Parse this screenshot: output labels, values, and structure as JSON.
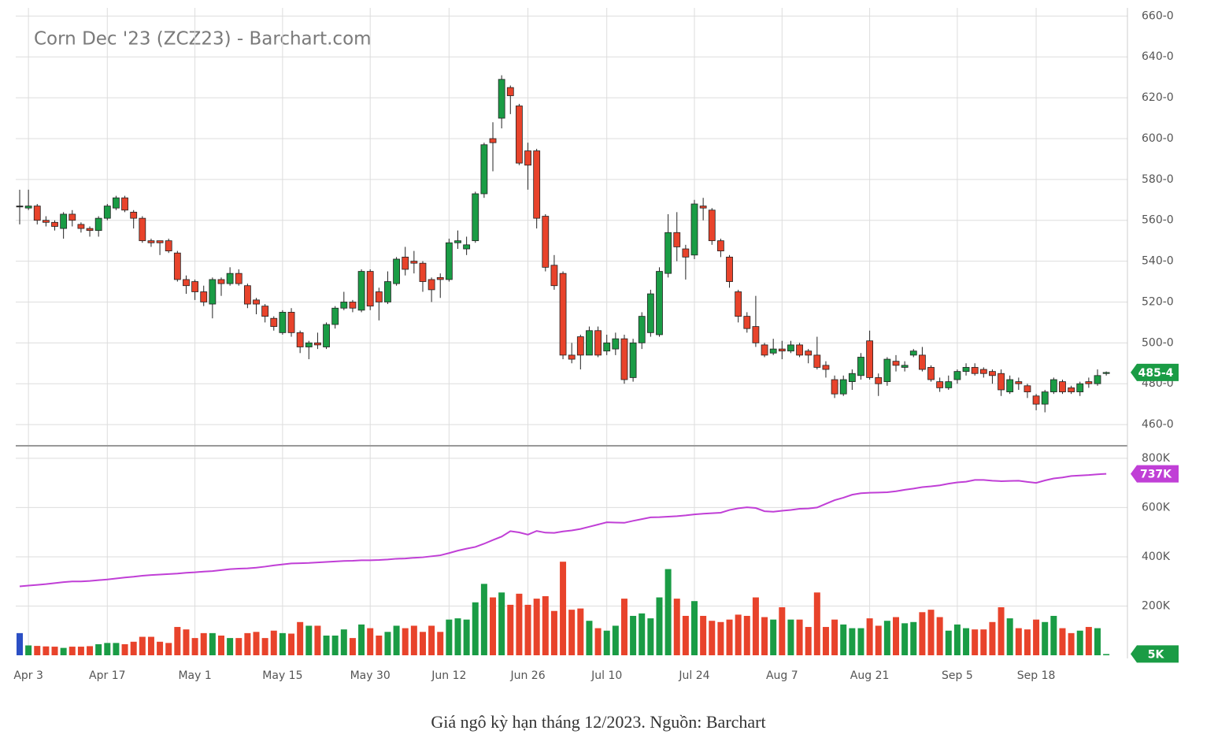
{
  "caption": "Giá ngô kỳ hạn tháng 12/2023. Nguồn: Barchart",
  "chart_data": [
    {
      "type": "candlestick",
      "title": "Corn Dec '23 (ZCZ23) - Barchart.com",
      "categories": [
        null,
        "Apr 3",
        null,
        null,
        null,
        null,
        null,
        null,
        null,
        null,
        "Apr 17",
        null,
        null,
        null,
        null,
        null,
        null,
        null,
        null,
        null,
        "May 1",
        null,
        null,
        null,
        null,
        null,
        null,
        null,
        null,
        null,
        "May 15",
        null,
        null,
        null,
        null,
        null,
        null,
        null,
        null,
        null,
        "May 30",
        null,
        null,
        null,
        null,
        null,
        null,
        null,
        null,
        "Jun 12",
        null,
        null,
        null,
        null,
        null,
        null,
        null,
        null,
        "Jun 26",
        null,
        null,
        null,
        null,
        null,
        null,
        null,
        null,
        "Jul 10",
        null,
        null,
        null,
        null,
        null,
        null,
        null,
        null,
        null,
        "Jul 24",
        null,
        null,
        null,
        null,
        null,
        null,
        null,
        null,
        null,
        "Aug 7",
        null,
        null,
        null,
        null,
        null,
        null,
        null,
        null,
        null,
        "Aug 21",
        null,
        null,
        null,
        null,
        null,
        null,
        null,
        null,
        null,
        "Sep 5",
        null,
        null,
        null,
        null,
        null,
        null,
        null,
        null,
        "Sep 18",
        null,
        null,
        null,
        null,
        null,
        null,
        null,
        null
      ],
      "open": [
        567,
        566,
        567,
        560,
        559,
        556,
        563,
        558,
        556,
        555,
        561,
        566,
        571,
        564,
        561,
        550,
        550,
        550,
        544,
        531,
        530,
        525,
        519,
        531,
        529,
        534,
        528,
        521,
        518,
        512,
        505,
        515,
        505,
        498,
        500,
        498,
        509,
        517,
        520,
        516,
        535,
        525,
        520,
        529,
        542,
        540,
        539,
        531,
        532,
        531,
        549,
        546,
        550,
        573,
        600,
        610,
        625,
        616,
        594,
        594,
        562,
        538,
        534,
        494,
        503,
        494,
        506,
        496,
        497,
        502,
        483,
        500,
        505,
        504,
        534,
        554,
        546,
        543,
        567,
        565,
        550,
        542,
        525,
        513,
        508,
        499,
        495,
        497,
        496,
        499,
        496,
        494,
        489,
        482,
        475,
        481,
        484,
        501,
        483,
        481,
        491,
        488,
        494,
        494,
        488,
        481,
        478,
        482,
        486,
        488,
        487,
        486,
        485,
        476,
        481,
        479,
        474,
        470,
        476,
        481,
        478,
        476,
        481,
        480,
        485
      ],
      "high": [
        575,
        575,
        568,
        562,
        560,
        564,
        565,
        559,
        557,
        562,
        568,
        572,
        572,
        565,
        562,
        551,
        550,
        551,
        545,
        533,
        531,
        528,
        532,
        532,
        537,
        536,
        529,
        522,
        519,
        513,
        516,
        517,
        506,
        501,
        505,
        510,
        518,
        525,
        521,
        536,
        536,
        527,
        535,
        542,
        547,
        545,
        540,
        532,
        534,
        551,
        555,
        552,
        574,
        598,
        608,
        631,
        626,
        617,
        598,
        595,
        563,
        543,
        535,
        500,
        504,
        508,
        508,
        504,
        505,
        504,
        502,
        515,
        526,
        537,
        563,
        564,
        548,
        570,
        571,
        566,
        551,
        543,
        526,
        515,
        523,
        500,
        502,
        501,
        501,
        500,
        497,
        503,
        491,
        484,
        484,
        487,
        495,
        506,
        485,
        493,
        494,
        491,
        497,
        498,
        489,
        483,
        484,
        487,
        490,
        490,
        488,
        487,
        487,
        484,
        483,
        480,
        475,
        477,
        483,
        482,
        479,
        481,
        483,
        487,
        486
      ],
      "low": [
        558,
        565,
        558,
        557,
        555,
        551,
        557,
        554,
        552,
        552,
        560,
        565,
        564,
        556,
        549,
        547,
        543,
        544,
        530,
        524,
        521,
        518,
        512,
        523,
        528,
        528,
        517,
        514,
        510,
        506,
        504,
        503,
        495,
        492,
        497,
        497,
        507,
        516,
        515,
        515,
        516,
        511,
        519,
        528,
        533,
        534,
        525,
        520,
        522,
        530,
        546,
        543,
        549,
        571,
        584,
        605,
        612,
        587,
        575,
        556,
        535,
        526,
        492,
        490,
        487,
        494,
        493,
        494,
        494,
        480,
        481,
        497,
        503,
        503,
        532,
        540,
        531,
        541,
        560,
        548,
        542,
        527,
        510,
        505,
        498,
        493,
        494,
        492,
        495,
        493,
        490,
        487,
        483,
        473,
        474,
        477,
        482,
        482,
        474,
        479,
        486,
        486,
        493,
        486,
        481,
        476,
        477,
        480,
        484,
        484,
        483,
        480,
        474,
        475,
        477,
        473,
        467,
        466,
        475,
        475,
        475,
        474,
        478,
        479,
        484
      ],
      "close": [
        567,
        567,
        560,
        559,
        557,
        563,
        560,
        556,
        555,
        561,
        567,
        571,
        565,
        561,
        550,
        549,
        549,
        545,
        531,
        528,
        525,
        520,
        531,
        529,
        534,
        529,
        519,
        519,
        513,
        508,
        515,
        505,
        498,
        500,
        499,
        509,
        517,
        520,
        517,
        535,
        518,
        520,
        530,
        541,
        536,
        539,
        530,
        526,
        531,
        549,
        550,
        548,
        573,
        597,
        598,
        629,
        621,
        588,
        587,
        561,
        537,
        528,
        494,
        492,
        494,
        506,
        494,
        500,
        502,
        482,
        500,
        513,
        524,
        535,
        554,
        547,
        542,
        568,
        566,
        550,
        545,
        530,
        513,
        507,
        500,
        494,
        497,
        496,
        499,
        494,
        494,
        488,
        487,
        475,
        482,
        485,
        493,
        483,
        480,
        492,
        489,
        489,
        496,
        487,
        482,
        478,
        481,
        486,
        488,
        485,
        485,
        484,
        477,
        482,
        480,
        476,
        470,
        476,
        482,
        476,
        476,
        480,
        480,
        484,
        485.5
      ],
      "colors": {
        "up": "#1a9c45",
        "down": "#e8432b",
        "neutral": "#2b4fc4"
      },
      "ylim": [
        450,
        664
      ],
      "yticks": [
        {
          "value": 460,
          "label": "460-0"
        },
        {
          "value": 480,
          "label": "480-0"
        },
        {
          "value": 500,
          "label": "500-0"
        },
        {
          "value": 520,
          "label": "520-0"
        },
        {
          "value": 540,
          "label": "540-0"
        },
        {
          "value": 560,
          "label": "560-0"
        },
        {
          "value": 580,
          "label": "580-0"
        },
        {
          "value": 600,
          "label": "600-0"
        },
        {
          "value": 620,
          "label": "620-0"
        },
        {
          "value": 640,
          "label": "640-0"
        },
        {
          "value": 660,
          "label": "660-0"
        }
      ],
      "last_price": {
        "value": 485.5,
        "label": "485-4"
      },
      "grid": true
    },
    {
      "type": "volume",
      "values": [
        90,
        40,
        38,
        36,
        35,
        30,
        35,
        35,
        37,
        45,
        50,
        50,
        45,
        55,
        75,
        75,
        55,
        50,
        115,
        105,
        70,
        90,
        90,
        80,
        70,
        70,
        90,
        95,
        70,
        100,
        90,
        88,
        135,
        120,
        120,
        80,
        80,
        105,
        70,
        125,
        110,
        80,
        95,
        120,
        110,
        120,
        95,
        120,
        95,
        145,
        150,
        145,
        215,
        290,
        235,
        255,
        205,
        250,
        205,
        230,
        240,
        180,
        380,
        185,
        190,
        140,
        110,
        100,
        120,
        230,
        160,
        170,
        150,
        235,
        350,
        230,
        160,
        220,
        160,
        140,
        135,
        145,
        165,
        160,
        235,
        155,
        145,
        195,
        145,
        145,
        115,
        255,
        115,
        145,
        125,
        110,
        110,
        150,
        120,
        140,
        155,
        130,
        135,
        175,
        185,
        155,
        100,
        125,
        110,
        105,
        105,
        135,
        195,
        150,
        110,
        105,
        145,
        135,
        160,
        110,
        90,
        100,
        115,
        110,
        5
      ],
      "line": {
        "color": "#c03fd6",
        "values": [
          280,
          283,
          286,
          289,
          293,
          297,
          300,
          300,
          302,
          305,
          308,
          312,
          316,
          319,
          323,
          326,
          328,
          330,
          332,
          335,
          337,
          340,
          342,
          346,
          350,
          352,
          353,
          356,
          360,
          365,
          369,
          373,
          374,
          375,
          377,
          379,
          381,
          383,
          384,
          386,
          386,
          387,
          389,
          392,
          393,
          396,
          398,
          402,
          406,
          415,
          425,
          433,
          440,
          453,
          468,
          482,
          504,
          499,
          490,
          505,
          498,
          497,
          503,
          507,
          513,
          522,
          531,
          540,
          539,
          538,
          546,
          553,
          560,
          561,
          563,
          565,
          568,
          572,
          575,
          577,
          579,
          590,
          597,
          601,
          598,
          585,
          583,
          587,
          590,
          595,
          596,
          600,
          615,
          630,
          640,
          652,
          658,
          660,
          661,
          662,
          666,
          672,
          677,
          683,
          686,
          690,
          697,
          702,
          705,
          712,
          712,
          709,
          707,
          708,
          709,
          704,
          700,
          710,
          718,
          722,
          728,
          730,
          732,
          735,
          737
        ]
      },
      "ylim": [
        0,
        822
      ],
      "yticks": [
        {
          "value": 200,
          "label": "200K"
        },
        {
          "value": 400,
          "label": "400K"
        },
        {
          "value": 600,
          "label": "600K"
        },
        {
          "value": 800,
          "label": "800K"
        }
      ],
      "line_last": {
        "value": 737,
        "label": "737K"
      },
      "volume_last": {
        "value": 5,
        "label": "5K"
      },
      "grid": true
    }
  ]
}
